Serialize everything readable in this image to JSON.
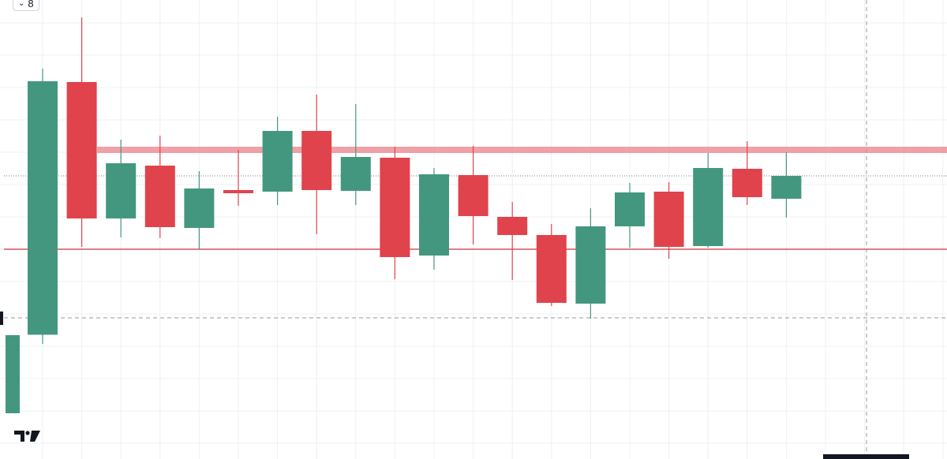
{
  "toolbar": {
    "collapse_icon": "chevron-down-icon",
    "count_label": "8"
  },
  "logo": {
    "icon": "tradingview-logo-icon"
  },
  "colors": {
    "up": "#44977f",
    "down": "#e0434c",
    "grid": "#eff0f3",
    "resistance_zone": "#e9828a",
    "support_line": "#d9535b",
    "crosshair": "#9598a1",
    "dotted_line": "#787b86"
  },
  "chart_data": {
    "type": "candlestick",
    "y_range": [
      0,
      582
    ],
    "grid": true,
    "candles": [
      {
        "o": 0.0,
        "h": 0.0,
        "l": 0.0,
        "c": 0.0
      },
      {
        "o": 157.6,
        "h": 495.0,
        "l": 146.0,
        "c": 479.0
      },
      {
        "o": 478.0,
        "h": 560.0,
        "l": 269.0,
        "c": 305.0
      },
      {
        "o": 305.0,
        "h": 405.0,
        "l": 281.0,
        "c": 375.0
      },
      {
        "o": 372.0,
        "h": 410.0,
        "l": 280.0,
        "c": 294.0
      },
      {
        "o": 293.0,
        "h": 365.0,
        "l": 266.0,
        "c": 343.0
      },
      {
        "o": 341.0,
        "h": 392.0,
        "l": 321.0,
        "c": 337.0
      },
      {
        "o": 339.0,
        "h": 434.0,
        "l": 322.0,
        "c": 416.0
      },
      {
        "o": 416.0,
        "h": 462.0,
        "l": 285.0,
        "c": 341.0
      },
      {
        "o": 340.0,
        "h": 450.0,
        "l": 322.0,
        "c": 383.0
      },
      {
        "o": 382.0,
        "h": 396.0,
        "l": 228.0,
        "c": 256.0
      },
      {
        "o": 258.0,
        "h": 369.0,
        "l": 240.0,
        "c": 361.0
      },
      {
        "o": 360.0,
        "h": 397.0,
        "l": 272.0,
        "c": 308.0
      },
      {
        "o": 307.0,
        "h": 326.0,
        "l": 227.0,
        "c": 284.0
      },
      {
        "o": 284.0,
        "h": 298.0,
        "l": 194.0,
        "c": 198.0
      },
      {
        "o": 197.0,
        "h": 318.0,
        "l": 178.0,
        "c": 295.0
      },
      {
        "o": 295.0,
        "h": 350.0,
        "l": 268.0,
        "c": 338.0
      },
      {
        "o": 339.0,
        "h": 351.0,
        "l": 254.0,
        "c": 269.0
      },
      {
        "o": 270.0,
        "h": 388.0,
        "l": 268.0,
        "c": 369.0
      },
      {
        "o": 368.0,
        "h": 403.0,
        "l": 322.0,
        "c": 332.0
      },
      {
        "o": 330.0,
        "h": 389.0,
        "l": 306.0,
        "c": 359.0
      }
    ],
    "first_partial": {
      "o": 58.0,
      "c": 157.0
    },
    "support_level": 266.0,
    "resistance_zone": [
      388.0,
      396.0
    ],
    "dashed_level": 179.0,
    "dotted_level": 359.0,
    "crosshair_x_index": 22
  }
}
